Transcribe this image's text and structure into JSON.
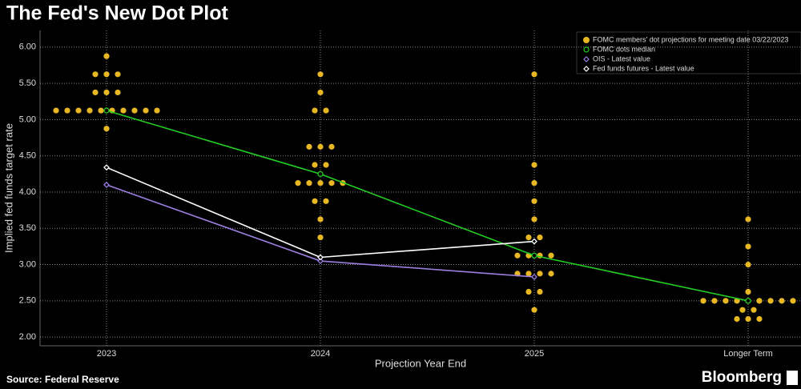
{
  "chart_data": {
    "type": "dot-plot",
    "title": "The Fed's New Dot Plot",
    "x_label": "Projection Year End",
    "y_label": "Implied fed funds target rate",
    "categories": [
      "2023",
      "2024",
      "2025",
      "Longer Term"
    ],
    "dots": {
      "name": "FOMC members' dot projections for meeting date 03/22/2023",
      "color": "#e8b824",
      "values": [
        [
          5.875,
          5.625,
          5.625,
          5.625,
          5.375,
          5.375,
          5.375,
          5.125,
          5.125,
          5.125,
          5.125,
          5.125,
          5.125,
          5.125,
          5.125,
          5.125,
          5.125,
          4.875
        ],
        [
          5.625,
          5.375,
          5.125,
          5.125,
          4.625,
          4.625,
          4.625,
          4.375,
          4.375,
          4.125,
          4.125,
          4.125,
          4.125,
          4.125,
          3.875,
          3.875,
          3.625,
          3.375
        ],
        [
          5.625,
          4.375,
          4.125,
          3.875,
          3.625,
          3.375,
          3.375,
          3.125,
          3.125,
          3.125,
          3.125,
          2.875,
          2.875,
          2.875,
          2.875,
          2.625,
          2.625,
          2.375
        ],
        [
          3.625,
          3.25,
          3.0,
          2.625,
          2.5,
          2.5,
          2.5,
          2.5,
          2.5,
          2.5,
          2.5,
          2.5,
          2.5,
          2.375,
          2.375,
          2.25,
          2.25,
          2.25
        ]
      ]
    },
    "series": [
      {
        "name": "FOMC dots median",
        "color": "#22cc22",
        "marker": "circle",
        "values": [
          5.125,
          4.25,
          3.125,
          2.5
        ]
      },
      {
        "name": "OIS - Latest value",
        "color": "#9b7fe0",
        "marker": "diamond",
        "values": [
          4.1,
          3.05,
          2.83,
          null
        ]
      },
      {
        "name": "Fed funds futures - Latest value",
        "color": "#ffffff",
        "marker": "diamond",
        "values": [
          4.34,
          3.1,
          3.32,
          null
        ]
      }
    ],
    "ylim": [
      1.88,
      6.23
    ],
    "yticks": [
      {
        "value": 2,
        "label": "2.00"
      },
      {
        "value": 2.5,
        "label": "2.50"
      },
      {
        "value": 3,
        "label": "3.00"
      },
      {
        "value": 3.5,
        "label": "3.50"
      },
      {
        "value": 4,
        "label": "4.00"
      },
      {
        "value": 4.5,
        "label": "4.50"
      },
      {
        "value": 5,
        "label": "5.00"
      },
      {
        "value": 5.5,
        "label": "5.50"
      },
      {
        "value": 6,
        "label": "6.00"
      }
    ],
    "grid": true,
    "source": "Source: Federal Reserve",
    "brand": "Bloomberg"
  }
}
